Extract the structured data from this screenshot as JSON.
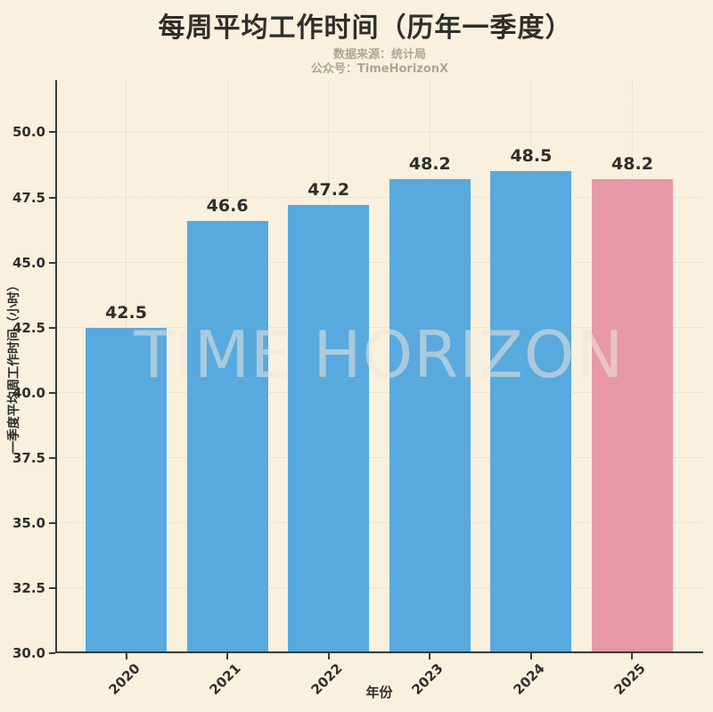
{
  "header": {
    "title": "每周平均工作时间（历年一季度）",
    "subtitle_source": "数据来源：统计局",
    "subtitle_account": "公众号：TimeHorizonX"
  },
  "chart_data": {
    "type": "bar",
    "title": "每周平均工作时间（历年一季度）",
    "categories": [
      "2020",
      "2021",
      "2022",
      "2023",
      "2024",
      "2025"
    ],
    "values": [
      42.5,
      46.6,
      47.2,
      48.2,
      48.5,
      48.2
    ],
    "xlabel": "年份",
    "ylabel": "一季度平均周工作时间（小时）",
    "ylim": [
      30.0,
      52.0
    ],
    "yticks": [
      30.0,
      32.5,
      35.0,
      37.5,
      40.0,
      42.5,
      45.0,
      47.5,
      50.0
    ],
    "grid": true,
    "legend": "none",
    "bar_colors": [
      "#58A9DE",
      "#58A9DE",
      "#58A9DE",
      "#58A9DE",
      "#58A9DE",
      "#E697AA"
    ],
    "highlighted_category": "2025",
    "watermark": "TIME HORIZON"
  },
  "colors": {
    "background": "#F9F0DD",
    "bar_blue": "#58A9DE",
    "bar_highlight": "#E697AA",
    "text": "#2E2E2C",
    "subtitle": "#AFA78F",
    "grid": "#E3D9C4",
    "spine": "#3A3A38",
    "watermark": "rgba(236,230,218,0.55)"
  }
}
